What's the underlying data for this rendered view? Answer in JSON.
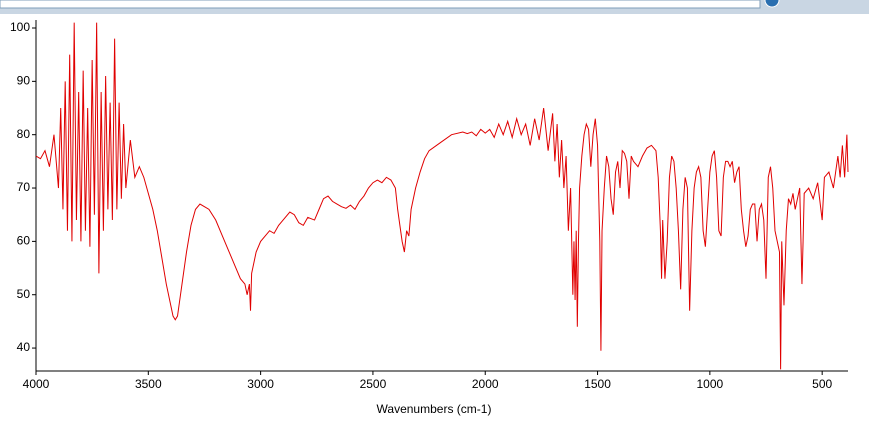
{
  "chart_data": {
    "type": "line",
    "x_label": "Wavenumbers (cm-1)",
    "xlim": [
      4000,
      385
    ],
    "xticks": [
      4000,
      3500,
      3000,
      2500,
      2000,
      1500,
      1000,
      500
    ],
    "ylim": [
      35.7,
      101.5
    ],
    "yticks": [
      40,
      50,
      60,
      70,
      80,
      90,
      100
    ],
    "x": [
      4000,
      3980,
      3960,
      3940,
      3920,
      3900,
      3890,
      3880,
      3870,
      3860,
      3850,
      3840,
      3830,
      3820,
      3810,
      3800,
      3790,
      3780,
      3770,
      3760,
      3750,
      3740,
      3730,
      3720,
      3710,
      3700,
      3690,
      3680,
      3670,
      3660,
      3650,
      3640,
      3630,
      3620,
      3610,
      3600,
      3580,
      3560,
      3540,
      3520,
      3500,
      3480,
      3460,
      3440,
      3420,
      3400,
      3390,
      3380,
      3370,
      3350,
      3330,
      3310,
      3290,
      3270,
      3250,
      3230,
      3200,
      3170,
      3140,
      3110,
      3090,
      3070,
      3060,
      3050,
      3045,
      3040,
      3020,
      3000,
      2980,
      2960,
      2940,
      2920,
      2900,
      2870,
      2850,
      2830,
      2810,
      2790,
      2760,
      2740,
      2720,
      2700,
      2680,
      2660,
      2640,
      2620,
      2600,
      2580,
      2560,
      2540,
      2520,
      2500,
      2480,
      2460,
      2440,
      2420,
      2400,
      2390,
      2380,
      2370,
      2360,
      2350,
      2340,
      2330,
      2310,
      2290,
      2270,
      2250,
      2200,
      2150,
      2100,
      2080,
      2060,
      2040,
      2020,
      2000,
      1980,
      1960,
      1940,
      1920,
      1900,
      1880,
      1860,
      1840,
      1820,
      1800,
      1780,
      1760,
      1740,
      1720,
      1700,
      1690,
      1680,
      1670,
      1660,
      1650,
      1640,
      1630,
      1620,
      1610,
      1605,
      1600,
      1595,
      1590,
      1585,
      1580,
      1570,
      1560,
      1550,
      1540,
      1530,
      1520,
      1510,
      1500,
      1490,
      1485,
      1480,
      1470,
      1460,
      1450,
      1440,
      1430,
      1420,
      1410,
      1400,
      1390,
      1380,
      1370,
      1360,
      1350,
      1340,
      1320,
      1300,
      1280,
      1260,
      1240,
      1230,
      1220,
      1215,
      1210,
      1200,
      1190,
      1180,
      1170,
      1160,
      1150,
      1140,
      1130,
      1120,
      1110,
      1100,
      1090,
      1080,
      1070,
      1060,
      1050,
      1040,
      1030,
      1020,
      1010,
      1000,
      990,
      980,
      970,
      960,
      950,
      940,
      930,
      920,
      910,
      900,
      890,
      880,
      870,
      860,
      850,
      840,
      830,
      820,
      810,
      800,
      790,
      780,
      770,
      760,
      750,
      740,
      730,
      720,
      710,
      700,
      690,
      685,
      680,
      670,
      660,
      650,
      640,
      630,
      620,
      610,
      600,
      590,
      585,
      580,
      560,
      540,
      520,
      500,
      490,
      470,
      450,
      430,
      420,
      410,
      400,
      390,
      385
    ],
    "series": [
      {
        "color": "#e00000",
        "values": [
          76,
          75.5,
          77,
          74,
          80,
          70,
          85,
          66,
          90,
          62,
          95,
          60,
          101,
          64,
          88,
          60,
          92,
          62,
          85,
          59,
          94,
          65,
          101,
          54,
          88,
          62,
          91,
          66,
          86,
          64,
          98,
          66,
          86,
          68,
          82,
          70,
          79,
          72,
          74,
          72,
          69,
          66,
          62,
          57,
          52,
          48,
          46,
          45.3,
          46,
          52,
          58,
          63,
          66,
          67,
          66.5,
          66,
          64,
          61,
          58,
          55,
          53,
          52,
          50,
          52,
          47,
          54,
          58,
          60,
          61,
          62,
          61.5,
          63,
          64,
          65.5,
          65,
          63.5,
          63,
          64.5,
          64,
          66,
          68,
          68.5,
          67.5,
          67,
          66.5,
          66.2,
          66.8,
          66,
          67.5,
          68.5,
          70,
          71,
          71.5,
          71,
          72,
          71.5,
          70,
          66,
          63,
          60,
          58,
          62,
          61,
          66,
          70,
          73,
          75.5,
          77,
          78.5,
          80,
          80.5,
          80.2,
          80.5,
          79.8,
          81,
          80.3,
          81,
          79.5,
          82,
          80,
          82.5,
          79.5,
          83,
          80,
          82,
          78,
          83,
          79,
          85,
          77,
          84,
          75,
          82,
          72,
          79,
          70,
          76,
          62,
          70,
          50,
          60,
          49,
          62,
          44,
          60,
          70,
          76,
          80,
          82,
          81,
          74,
          80,
          83,
          78,
          60,
          39.5,
          62,
          70,
          76,
          74,
          68,
          65,
          73,
          75,
          70,
          77,
          76.5,
          75,
          68,
          76,
          75,
          74,
          76,
          77.5,
          78,
          77,
          72,
          62,
          53,
          64,
          53,
          60,
          72,
          76,
          75,
          70,
          62,
          51,
          66,
          72,
          70,
          47,
          62,
          70,
          73,
          74,
          72,
          62,
          59,
          66,
          73,
          76,
          77,
          72,
          62,
          61,
          72,
          75,
          75,
          74,
          75,
          71,
          73,
          74,
          66,
          62,
          59,
          61,
          66,
          67,
          67,
          60,
          66,
          67,
          64,
          53,
          72,
          74,
          70,
          62,
          60,
          58,
          36,
          60,
          48,
          62,
          68,
          67,
          69,
          66,
          68,
          70,
          52,
          60,
          69,
          70,
          68,
          71,
          64,
          72,
          73,
          70,
          76,
          72,
          78,
          72,
          80,
          73
        ]
      }
    ]
  }
}
